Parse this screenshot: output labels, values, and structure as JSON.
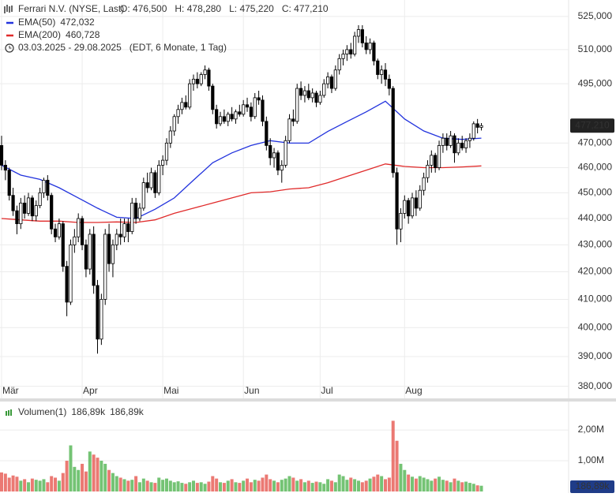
{
  "chart_data": [
    {
      "type": "candlestick",
      "title": "Ferrari N.V. (NYSE, Last)",
      "ohlc_labels": [
        "O: 476,500",
        "H: 478,280",
        "L: 475,220",
        "C: 477,210"
      ],
      "subtitle": "03.03.2025 - 29.08.2025",
      "note": "(EDT, 6 Monate, 1 Tag)",
      "price_label": "477,210",
      "log_scale": true,
      "grid": true,
      "up_color": "#ffffff",
      "down_color": "#000000",
      "categories": [
        "Mär",
        null,
        null,
        null,
        null,
        null,
        null,
        null,
        null,
        null,
        null,
        null,
        null,
        null,
        null,
        null,
        null,
        null,
        null,
        null,
        null,
        "Apr",
        null,
        null,
        null,
        null,
        null,
        null,
        null,
        null,
        null,
        null,
        null,
        null,
        null,
        null,
        null,
        null,
        null,
        null,
        null,
        null,
        "Mai",
        null,
        null,
        null,
        null,
        null,
        null,
        null,
        null,
        null,
        null,
        null,
        null,
        null,
        null,
        null,
        null,
        null,
        null,
        null,
        null,
        "Jun",
        null,
        null,
        null,
        null,
        null,
        null,
        null,
        null,
        null,
        null,
        null,
        null,
        null,
        null,
        null,
        null,
        null,
        null,
        null,
        "Jul",
        null,
        null,
        null,
        null,
        null,
        null,
        null,
        null,
        null,
        null,
        null,
        null,
        null,
        null,
        null,
        null,
        null,
        null,
        null,
        null,
        null,
        "Aug",
        null,
        null,
        null,
        null,
        null,
        null,
        null,
        null,
        null,
        null,
        null,
        null,
        null,
        null,
        null,
        null,
        null,
        null,
        null,
        null
      ],
      "ohlc": [
        [
          469000,
          473000,
          459000,
          461000
        ],
        [
          461000,
          463000,
          455000,
          459000
        ],
        [
          459000,
          460000,
          447000,
          449000
        ],
        [
          449000,
          452000,
          441000,
          443000
        ],
        [
          443000,
          445000,
          434000,
          438000
        ],
        [
          438000,
          448000,
          436000,
          446000
        ],
        [
          446000,
          449000,
          440000,
          442000
        ],
        [
          442000,
          450000,
          441000,
          448000
        ],
        [
          448000,
          449000,
          439000,
          441000
        ],
        [
          441000,
          447000,
          439000,
          445000
        ],
        [
          445000,
          452000,
          444000,
          450000
        ],
        [
          450000,
          456000,
          448000,
          455000
        ],
        [
          455000,
          457000,
          447000,
          449000
        ],
        [
          449000,
          450000,
          434000,
          436000
        ],
        [
          436000,
          438000,
          431000,
          433000
        ],
        [
          433000,
          440000,
          432000,
          438000
        ],
        [
          438000,
          439000,
          420000,
          422000
        ],
        [
          422000,
          424000,
          404000,
          409000
        ],
        [
          409000,
          432000,
          408000,
          430000
        ],
        [
          430000,
          436000,
          427000,
          433000
        ],
        [
          433000,
          442000,
          431000,
          440000
        ],
        [
          440000,
          441000,
          428000,
          430000
        ],
        [
          430000,
          432000,
          418000,
          421000
        ],
        [
          421000,
          436000,
          419000,
          434000
        ],
        [
          434000,
          437000,
          412000,
          415000
        ],
        [
          415000,
          417000,
          391000,
          396000
        ],
        [
          396000,
          412000,
          394000,
          410000
        ],
        [
          410000,
          436000,
          408000,
          434000
        ],
        [
          434000,
          438000,
          420000,
          423000
        ],
        [
          423000,
          432000,
          418000,
          430000
        ],
        [
          430000,
          436000,
          428000,
          434000
        ],
        [
          434000,
          440000,
          430000,
          433000
        ],
        [
          433000,
          440000,
          431000,
          438000
        ],
        [
          438000,
          440000,
          431000,
          435000
        ],
        [
          435000,
          448000,
          434000,
          446000
        ],
        [
          446000,
          448000,
          438000,
          440000
        ],
        [
          440000,
          446000,
          439000,
          444000
        ],
        [
          444000,
          456000,
          443000,
          454000
        ],
        [
          454000,
          458000,
          450000,
          452000
        ],
        [
          452000,
          460000,
          451000,
          458000
        ],
        [
          458000,
          459000,
          448000,
          450000
        ],
        [
          450000,
          463000,
          449000,
          461000
        ],
        [
          461000,
          465000,
          457000,
          463000
        ],
        [
          463000,
          472000,
          461000,
          470000
        ],
        [
          470000,
          477000,
          468000,
          475000
        ],
        [
          475000,
          482000,
          473000,
          481000
        ],
        [
          481000,
          486000,
          478000,
          484000
        ],
        [
          484000,
          489000,
          482000,
          487000
        ],
        [
          487000,
          490000,
          484000,
          485000
        ],
        [
          485000,
          497000,
          484000,
          495000
        ],
        [
          495000,
          499000,
          492000,
          497000
        ],
        [
          497000,
          500000,
          493000,
          495000
        ],
        [
          495000,
          500000,
          494000,
          499000
        ],
        [
          499000,
          503000,
          497000,
          501000
        ],
        [
          501000,
          502000,
          492000,
          494000
        ],
        [
          494000,
          495000,
          482000,
          484000
        ],
        [
          484000,
          486000,
          476000,
          478000
        ],
        [
          478000,
          483000,
          477000,
          481000
        ],
        [
          481000,
          484000,
          478000,
          479000
        ],
        [
          479000,
          483000,
          477000,
          482000
        ],
        [
          482000,
          485000,
          479000,
          480000
        ],
        [
          480000,
          484000,
          478000,
          483000
        ],
        [
          483000,
          486000,
          481000,
          482000
        ],
        [
          482000,
          488000,
          481000,
          486000
        ],
        [
          486000,
          489000,
          483000,
          485000
        ],
        [
          485000,
          487000,
          479000,
          481000
        ],
        [
          481000,
          491000,
          480000,
          489000
        ],
        [
          489000,
          492000,
          486000,
          488000
        ],
        [
          488000,
          490000,
          477000,
          479000
        ],
        [
          479000,
          481000,
          467000,
          469000
        ],
        [
          469000,
          472000,
          461000,
          464000
        ],
        [
          464000,
          468000,
          460000,
          466000
        ],
        [
          466000,
          467000,
          457000,
          459000
        ],
        [
          459000,
          463000,
          454000,
          461000
        ],
        [
          461000,
          473000,
          460000,
          471000
        ],
        [
          471000,
          482000,
          470000,
          480000
        ],
        [
          480000,
          484000,
          477000,
          479000
        ],
        [
          479000,
          495000,
          478000,
          493000
        ],
        [
          493000,
          496000,
          488000,
          490000
        ],
        [
          490000,
          494000,
          487000,
          492000
        ],
        [
          492000,
          495000,
          488000,
          489000
        ],
        [
          489000,
          493000,
          487000,
          491000
        ],
        [
          491000,
          492000,
          485000,
          487000
        ],
        [
          487000,
          492000,
          486000,
          490000
        ],
        [
          490000,
          497000,
          489000,
          495000
        ],
        [
          495000,
          500000,
          493000,
          498000
        ],
        [
          498000,
          499000,
          491000,
          493000
        ],
        [
          493000,
          503000,
          492000,
          501000
        ],
        [
          501000,
          508000,
          499000,
          506000
        ],
        [
          506000,
          510000,
          503000,
          508000
        ],
        [
          508000,
          512000,
          505000,
          510000
        ],
        [
          510000,
          513000,
          506000,
          508000
        ],
        [
          508000,
          518000,
          507000,
          516000
        ],
        [
          516000,
          521000,
          513000,
          519000
        ],
        [
          519000,
          521000,
          511000,
          513000
        ],
        [
          513000,
          516000,
          508000,
          510000
        ],
        [
          510000,
          515000,
          508000,
          513000
        ],
        [
          513000,
          514000,
          503000,
          505000
        ],
        [
          505000,
          506000,
          497000,
          499000
        ],
        [
          499000,
          503000,
          495000,
          501000
        ],
        [
          501000,
          504000,
          494000,
          497000
        ],
        [
          497000,
          499000,
          490000,
          493000
        ],
        [
          493000,
          494000,
          456000,
          458000
        ],
        [
          458000,
          460000,
          430000,
          436000
        ],
        [
          436000,
          444000,
          431000,
          442000
        ],
        [
          442000,
          449000,
          440000,
          447000
        ],
        [
          447000,
          448000,
          438000,
          441000
        ],
        [
          441000,
          450000,
          440000,
          448000
        ],
        [
          448000,
          451000,
          441000,
          444000
        ],
        [
          444000,
          453000,
          443000,
          451000
        ],
        [
          451000,
          458000,
          449000,
          456000
        ],
        [
          456000,
          463000,
          454000,
          461000
        ],
        [
          461000,
          467000,
          458000,
          465000
        ],
        [
          465000,
          466000,
          458000,
          460000
        ],
        [
          460000,
          471000,
          459000,
          469000
        ],
        [
          469000,
          474000,
          466000,
          472000
        ],
        [
          472000,
          474000,
          467000,
          469000
        ],
        [
          469000,
          475000,
          468000,
          473000
        ],
        [
          473000,
          474000,
          462000,
          466000
        ],
        [
          466000,
          472000,
          465000,
          470000
        ],
        [
          470000,
          473000,
          467000,
          468000
        ],
        [
          468000,
          472000,
          466000,
          471000
        ],
        [
          471000,
          474000,
          468000,
          472000
        ],
        [
          472000,
          479000,
          471000,
          478000
        ],
        [
          478000,
          480000,
          474000,
          476500
        ],
        [
          476500,
          478280,
          475220,
          477210
        ]
      ],
      "series": [
        {
          "name": "EMA(50)",
          "value_label": "472,032",
          "color": "#2233dd",
          "x": [
            0,
            5,
            10,
            15,
            20,
            25,
            30,
            35,
            40,
            45,
            50,
            55,
            60,
            65,
            70,
            75,
            80,
            85,
            90,
            95,
            100,
            105,
            110,
            115,
            120,
            125
          ],
          "values": [
            461000,
            457000,
            455300,
            452000,
            448000,
            444000,
            440500,
            440000,
            443600,
            448000,
            455000,
            462000,
            466000,
            469000,
            471000,
            470000,
            470000,
            474800,
            478900,
            483000,
            487500,
            480000,
            475000,
            472000,
            471500,
            472032
          ]
        },
        {
          "name": "EMA(200)",
          "value_label": "460,728",
          "color": "#e02a2a",
          "x": [
            0,
            5,
            10,
            15,
            20,
            25,
            30,
            35,
            40,
            45,
            50,
            55,
            60,
            65,
            70,
            75,
            80,
            85,
            90,
            95,
            100,
            105,
            110,
            115,
            120,
            125
          ],
          "values": [
            440000,
            439500,
            439000,
            439000,
            438500,
            438500,
            438700,
            438500,
            439500,
            442000,
            444000,
            446000,
            448000,
            450000,
            450400,
            451500,
            452000,
            454000,
            456500,
            459000,
            461500,
            460500,
            460000,
            460000,
            460300,
            460728
          ]
        }
      ],
      "ylim": [
        376000,
        532600
      ],
      "yticks": [
        {
          "value": 525000,
          "label": "525,000"
        },
        {
          "value": 510000,
          "label": "510,000"
        },
        {
          "value": 495000,
          "label": "495,000"
        },
        {
          "value": 470000,
          "label": "470,000"
        },
        {
          "value": 460000,
          "label": "460,000"
        },
        {
          "value": 450000,
          "label": "450,000"
        },
        {
          "value": 440000,
          "label": "440,000"
        },
        {
          "value": 430000,
          "label": "430,000"
        },
        {
          "value": 420000,
          "label": "420,000"
        },
        {
          "value": 410000,
          "label": "410,000"
        },
        {
          "value": 400000,
          "label": "400,000"
        },
        {
          "value": 390000,
          "label": "390,000"
        },
        {
          "value": 380000,
          "label": "380,000"
        }
      ]
    },
    {
      "type": "bar",
      "title": "Volumen(1)",
      "legend_value": "186,89k",
      "legend_value_2": "186,89k",
      "last_label": "186,89k",
      "up_color": "#5cb85c",
      "down_color": "#e8625a",
      "values": [
        620000,
        580000,
        450000,
        520000,
        480000,
        350000,
        400000,
        300000,
        420000,
        380000,
        350000,
        400000,
        300000,
        500000,
        450000,
        350000,
        600000,
        1000000,
        1500000,
        800000,
        700000,
        900000,
        650000,
        1300000,
        1200000,
        1100000,
        1000000,
        900000,
        700000,
        600000,
        500000,
        450000,
        400000,
        350000,
        380000,
        500000,
        300000,
        420000,
        350000,
        300000,
        280000,
        450000,
        380000,
        420000,
        350000,
        300000,
        330000,
        280000,
        250000,
        300000,
        350000,
        280000,
        300000,
        250000,
        320000,
        500000,
        420000,
        300000,
        280000,
        350000,
        400000,
        300000,
        280000,
        350000,
        420000,
        300000,
        380000,
        350000,
        450000,
        550000,
        400000,
        350000,
        300000,
        380000,
        420000,
        500000,
        450000,
        350000,
        400000,
        300000,
        350000,
        280000,
        320000,
        300000,
        250000,
        400000,
        350000,
        300000,
        550000,
        500000,
        380000,
        450000,
        400000,
        350000,
        300000,
        350000,
        420000,
        480000,
        550000,
        500000,
        400000,
        450000,
        2300000,
        1650000,
        900000,
        700000,
        550000,
        480000,
        420000,
        500000,
        450000,
        400000,
        350000,
        420000,
        480000,
        380000,
        350000,
        300000,
        420000,
        350000,
        300000,
        320000,
        280000,
        250000,
        200000,
        186890
      ],
      "ylim": [
        0,
        2900000
      ],
      "yticks": [
        {
          "value": 1000000,
          "label": "1,00M"
        },
        {
          "value": 2000000,
          "label": "2,00M"
        }
      ]
    }
  ]
}
